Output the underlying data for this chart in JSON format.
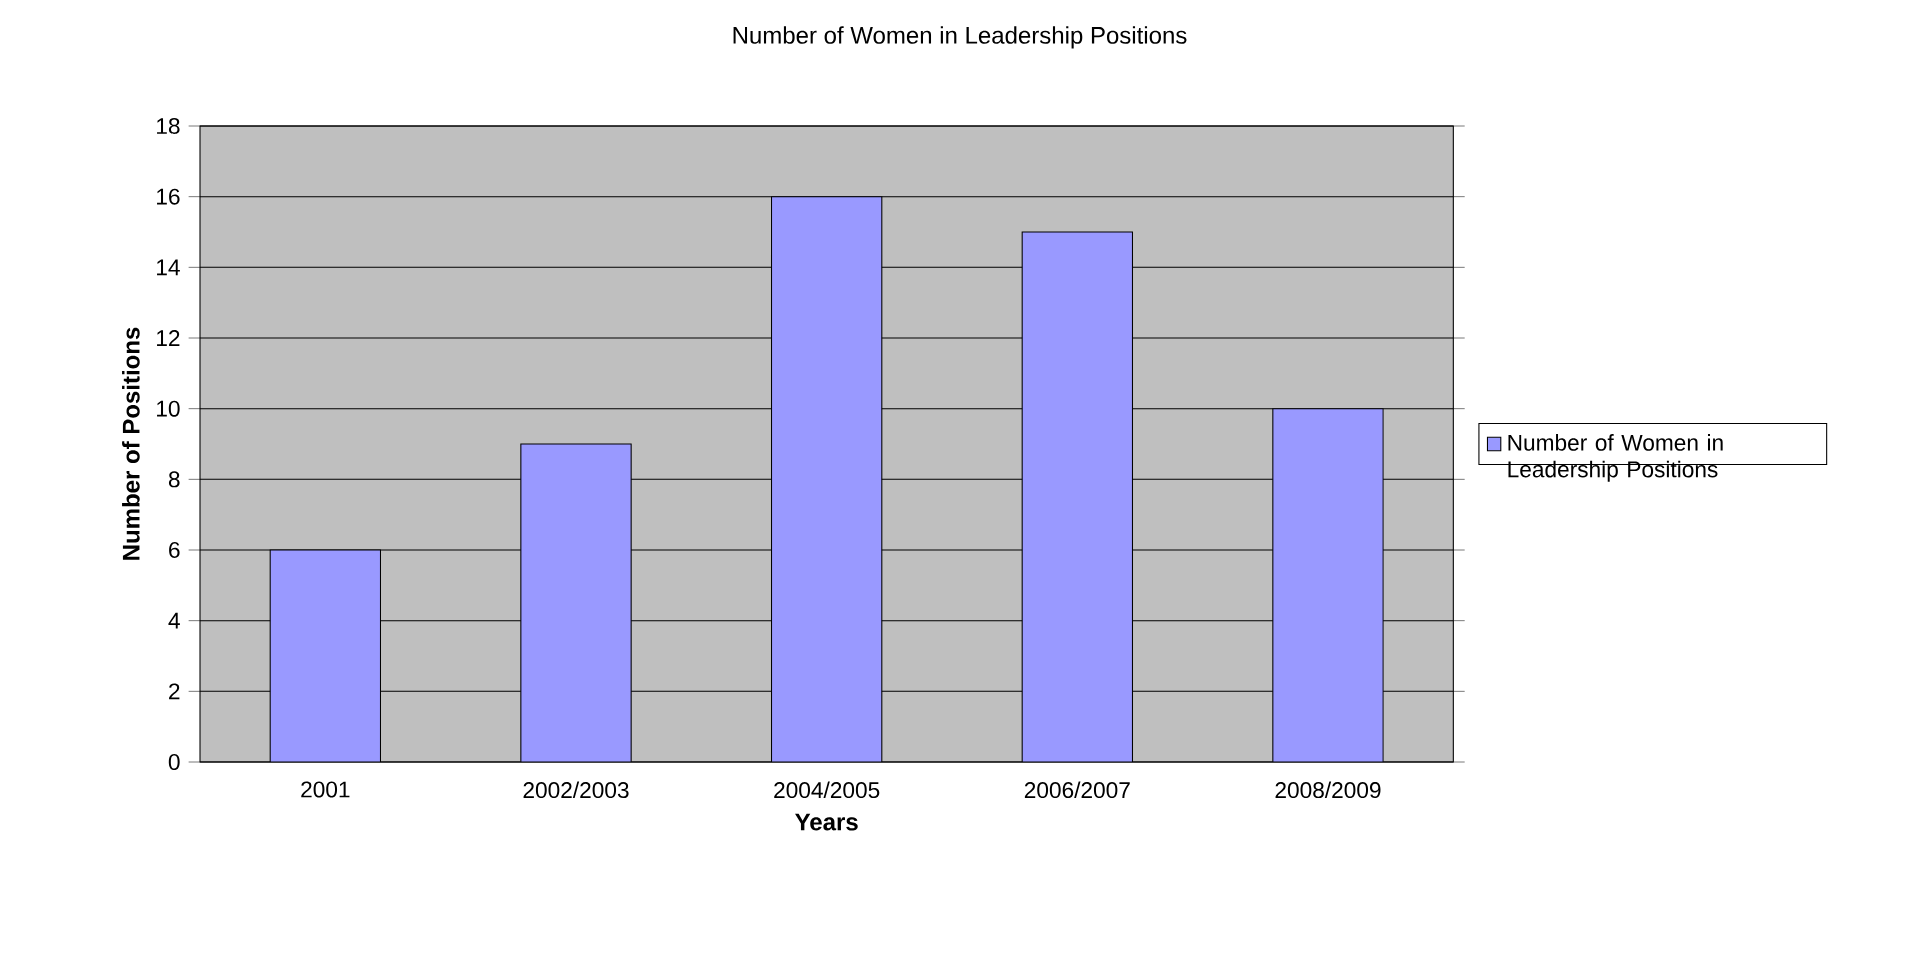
{
  "chart_data": {
    "type": "bar",
    "title": "Number of Women in Leadership Positions",
    "xlabel": "Years",
    "ylabel": "Number of Positions",
    "categories": [
      "2001",
      "2002/2003",
      "2004/2005",
      "2006/2007",
      "2008/2009"
    ],
    "series": [
      {
        "name": "Number of Women in Leadership Positions",
        "color": "#9999ff",
        "values": [
          6,
          9,
          16,
          15,
          10
        ]
      }
    ],
    "ylim": [
      0,
      18
    ],
    "yticks": [
      0,
      2,
      4,
      6,
      8,
      10,
      12,
      14,
      16,
      18
    ],
    "grid": "y",
    "legend": "right"
  }
}
